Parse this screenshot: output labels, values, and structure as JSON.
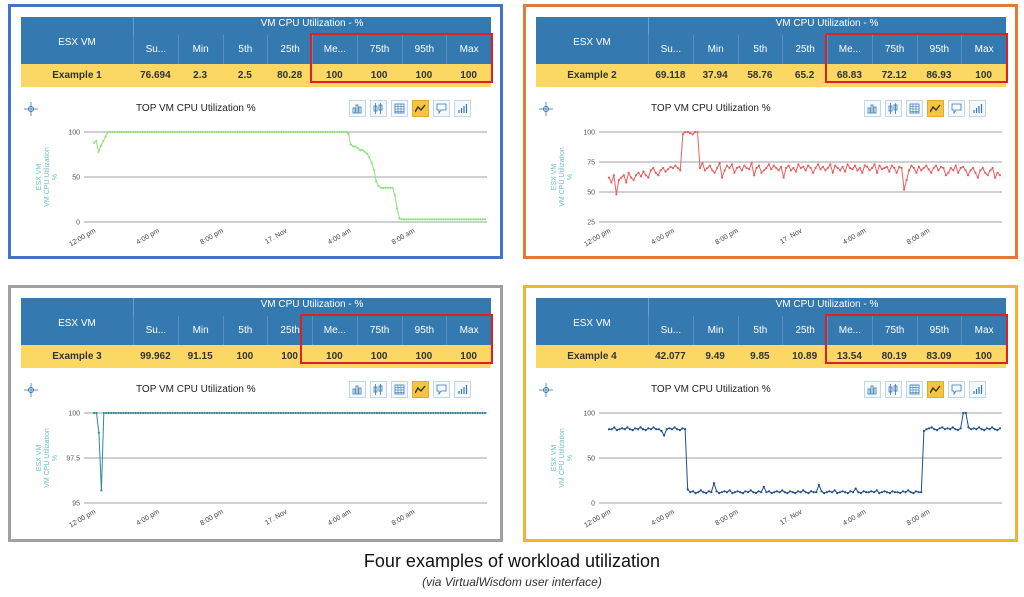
{
  "caption": "Four examples of workload utilization",
  "subcaption": "(via VirtualWisdom user interface)",
  "table_title": "VM CPU Utilization - %",
  "esx_header": "ESX VM",
  "columns": [
    "Su...",
    "Min",
    "5th",
    "25th",
    "Me...",
    "75th",
    "95th",
    "Max"
  ],
  "chart_title": "TOP VM CPU Utilization %",
  "icons": [
    "move-icon",
    "bar-chart-icon",
    "range-icon",
    "table-icon",
    "line-chart-icon",
    "comment-icon",
    "signal-icon"
  ],
  "colors": {
    "header": "#3579b1",
    "row": "#fad863",
    "highlight": "#e02020"
  },
  "examples": [
    {
      "name": "Example  1",
      "values": [
        "76.694",
        "2.3",
        "2.5",
        "80.28",
        "100",
        "100",
        "100",
        "100"
      ]
    },
    {
      "name": "Example  2",
      "values": [
        "69.118",
        "37.94",
        "58.76",
        "65.2",
        "68.83",
        "72.12",
        "86.93",
        "100"
      ]
    },
    {
      "name": "Example  3",
      "values": [
        "99.962",
        "91.15",
        "100",
        "100",
        "100",
        "100",
        "100",
        "100"
      ]
    },
    {
      "name": "Example  4",
      "values": [
        "42.077",
        "9.49",
        "9.85",
        "10.89",
        "13.54",
        "80.19",
        "83.09",
        "100"
      ]
    }
  ],
  "chart_data": [
    {
      "type": "line",
      "ylabel": "ESX VM\nVM CPU Utilization\n%",
      "x_ticks": [
        "12:00 pm",
        "4:00 pm",
        "8:00 pm",
        "17. Nov",
        "4:00 am",
        "8:00 am"
      ],
      "y_ticks": [
        0,
        50,
        100
      ],
      "ylim": [
        0,
        100
      ],
      "color": "#8fe07a",
      "series": [
        {
          "values": [
            88,
            90,
            78,
            85,
            90,
            95,
            100,
            100,
            100,
            100,
            100,
            100,
            100,
            100,
            100,
            100,
            100,
            100,
            100,
            100,
            100,
            100,
            100,
            100,
            100,
            100,
            100,
            100,
            100,
            100,
            100,
            100,
            100,
            100,
            100,
            100,
            100,
            100,
            100,
            100,
            100,
            100,
            100,
            100,
            100,
            100,
            100,
            100,
            100,
            100,
            100,
            100,
            100,
            100,
            100,
            100,
            100,
            100,
            100,
            100,
            100,
            100,
            100,
            100,
            100,
            100,
            100,
            100,
            100,
            100,
            100,
            100,
            100,
            100,
            100,
            100,
            100,
            100,
            100,
            100,
            100,
            100,
            100,
            100,
            100,
            100,
            100,
            100,
            100,
            100,
            100,
            100,
            100,
            100,
            100,
            100,
            100,
            100,
            100,
            100,
            100,
            100,
            100,
            100,
            100,
            100,
            100,
            100,
            100,
            100,
            98,
            86,
            84,
            84,
            82,
            80,
            80,
            78,
            76,
            72,
            66,
            58,
            45,
            40,
            38,
            38,
            38,
            38,
            38,
            38,
            30,
            15,
            4,
            3,
            3,
            3,
            3,
            3,
            3,
            3,
            3,
            3,
            3,
            3,
            3,
            3,
            3,
            3,
            3,
            3,
            3,
            3,
            3,
            3,
            3,
            3,
            3,
            3,
            3,
            3,
            3,
            3,
            3,
            3,
            3,
            3,
            3,
            3,
            3,
            3
          ]
        }
      ]
    },
    {
      "type": "line",
      "ylabel": "ESX VM\nVM CPU Utilization\n%",
      "x_ticks": [
        "12:00 pm",
        "4:00 pm",
        "8:00 pm",
        "17. Nov",
        "4:00 am",
        "8:00 am"
      ],
      "y_ticks": [
        25,
        50,
        75,
        100
      ],
      "ylim": [
        25,
        100
      ],
      "color": "#e86060",
      "series": [
        {
          "values": [
            62,
            58,
            64,
            48,
            60,
            62,
            64,
            58,
            66,
            62,
            60,
            64,
            66,
            63,
            67,
            64,
            62,
            68,
            70,
            66,
            64,
            68,
            70,
            67,
            69,
            71,
            70,
            72,
            70,
            68,
            98,
            100,
            100,
            99,
            98,
            100,
            100,
            70,
            74,
            68,
            70,
            72,
            68,
            66,
            70,
            74,
            62,
            68,
            72,
            70,
            73,
            66,
            70,
            71,
            68,
            72,
            70,
            69,
            74,
            64,
            70,
            72,
            66,
            68,
            70,
            73,
            69,
            72,
            70,
            68,
            71,
            62,
            70,
            72,
            68,
            70,
            67,
            73,
            70,
            71,
            68,
            72,
            70,
            66,
            70,
            73,
            69,
            71,
            68,
            70,
            73,
            66,
            72,
            70,
            68,
            71,
            67,
            73,
            70,
            69,
            72,
            68,
            70,
            66,
            72,
            71,
            68,
            70,
            73,
            66,
            72,
            69,
            70,
            71,
            67,
            72,
            70,
            66,
            71,
            70,
            52,
            60,
            68,
            72,
            70,
            66,
            71,
            68,
            70,
            72,
            69,
            66,
            70,
            72,
            68,
            71,
            70,
            64,
            66,
            70,
            68,
            72,
            66,
            70,
            71,
            68,
            64,
            68,
            70,
            66,
            62,
            68,
            70,
            66,
            64,
            68,
            70,
            62,
            66,
            64
          ]
        }
      ]
    },
    {
      "type": "line",
      "ylabel": "ESX VM\nVM CPU Utilization\n%",
      "x_ticks": [
        "12:00 pm",
        "4:00 pm",
        "8:00 pm",
        "17. Nov",
        "4:00 am",
        "8:00 am"
      ],
      "y_ticks": [
        95,
        97.5,
        100
      ],
      "ylim": [
        95,
        100
      ],
      "color": "#2e8b8f",
      "series": [
        {
          "values": [
            100,
            100,
            98.9,
            95.7,
            100,
            100,
            100,
            100,
            100,
            100,
            100,
            100,
            100,
            100,
            100,
            100,
            100,
            100,
            100,
            100,
            100,
            100,
            100,
            100,
            100,
            100,
            100,
            100,
            100,
            100,
            100,
            100,
            100,
            100,
            100,
            100,
            100,
            100,
            100,
            100,
            100,
            100,
            100,
            100,
            100,
            100,
            100,
            100,
            100,
            100,
            100,
            100,
            100,
            100,
            100,
            100,
            100,
            100,
            100,
            100,
            100,
            100,
            100,
            100,
            100,
            100,
            100,
            100,
            100,
            100,
            100,
            100,
            100,
            100,
            100,
            100,
            100,
            100,
            100,
            100,
            100,
            100,
            100,
            100,
            100,
            100,
            100,
            100,
            100,
            100,
            100,
            100,
            100,
            100,
            100,
            100,
            100,
            100,
            100,
            100,
            100,
            100,
            100,
            100,
            100,
            100,
            100,
            100,
            100,
            100,
            100,
            100,
            100,
            100,
            100,
            100,
            100,
            100,
            100,
            100,
            100,
            100,
            100,
            100,
            100,
            100,
            100,
            100,
            100,
            100,
            100,
            100,
            100,
            100,
            100,
            100,
            100,
            100,
            100,
            100,
            100,
            100,
            100,
            100,
            100,
            100,
            100,
            100,
            100,
            100,
            100,
            100,
            100,
            100,
            100,
            100,
            100,
            100,
            100,
            100
          ]
        }
      ]
    },
    {
      "type": "line",
      "ylabel": "ESX VM\nVM CPU Utilization\n%",
      "x_ticks": [
        "12:00 pm",
        "4:00 pm",
        "8:00 pm",
        "17. Nov",
        "4:00 am",
        "8:00 am"
      ],
      "y_ticks": [
        0,
        50,
        100
      ],
      "ylim": [
        0,
        100
      ],
      "color": "#1f4e8c",
      "series": [
        {
          "values": [
            82,
            82,
            84,
            81,
            82,
            83,
            82,
            84,
            82,
            81,
            83,
            82,
            84,
            82,
            81,
            83,
            82,
            84,
            82,
            82,
            80,
            75,
            82,
            83,
            82,
            84,
            82,
            81,
            83,
            82,
            15,
            12,
            13,
            11,
            12,
            14,
            12,
            11,
            13,
            12,
            22,
            13,
            11,
            12,
            13,
            12,
            14,
            11,
            12,
            13,
            12,
            11,
            13,
            12,
            14,
            12,
            11,
            13,
            12,
            18,
            12,
            13,
            11,
            12,
            13,
            12,
            14,
            12,
            11,
            13,
            12,
            11,
            13,
            12,
            14,
            12,
            11,
            13,
            12,
            12,
            20,
            13,
            11,
            12,
            13,
            12,
            14,
            11,
            12,
            13,
            12,
            11,
            13,
            12,
            16,
            12,
            11,
            13,
            12,
            12,
            13,
            12,
            14,
            11,
            12,
            13,
            12,
            11,
            13,
            12,
            12,
            11,
            13,
            12,
            14,
            12,
            11,
            13,
            12,
            12,
            80,
            82,
            83,
            84,
            82,
            81,
            83,
            84,
            82,
            83,
            82,
            84,
            82,
            81,
            83,
            100,
            100,
            84,
            82,
            83,
            82,
            84,
            82,
            81,
            83,
            82,
            84,
            82,
            81,
            83
          ]
        }
      ]
    }
  ]
}
